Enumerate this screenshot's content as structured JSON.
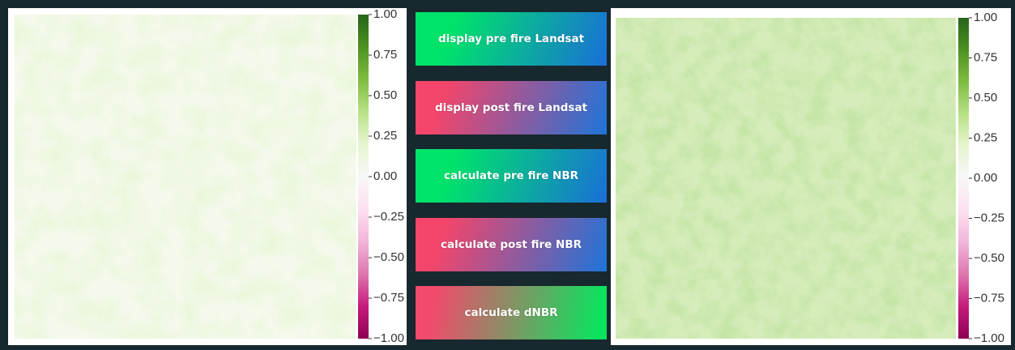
{
  "panels": [
    {
      "colorbar": {
        "lim": [
          -1,
          1
        ],
        "ticks": [
          {
            "value": 1,
            "label": "1.00"
          },
          {
            "value": 0.75,
            "label": "0.75"
          },
          {
            "value": 0.5,
            "label": "0.50"
          },
          {
            "value": 0.25,
            "label": "0.25"
          },
          {
            "value": 0,
            "label": "0.00"
          },
          {
            "value": -0.25,
            "label": "−0.25"
          },
          {
            "value": -0.5,
            "label": "−0.50"
          },
          {
            "value": -0.75,
            "label": "−0.75"
          },
          {
            "value": -1,
            "label": "−1.00"
          }
        ]
      }
    },
    {
      "colorbar": {
        "lim": [
          -1,
          1
        ],
        "ticks": [
          {
            "value": 1,
            "label": "1.00"
          },
          {
            "value": 0.75,
            "label": "0.75"
          },
          {
            "value": 0.5,
            "label": "0.50"
          },
          {
            "value": 0.25,
            "label": "0.25"
          },
          {
            "value": 0,
            "label": "0.00"
          },
          {
            "value": -0.25,
            "label": "−0.25"
          },
          {
            "value": -0.5,
            "label": "−0.50"
          },
          {
            "value": -0.75,
            "label": "−0.75"
          },
          {
            "value": -1,
            "label": "−1.00"
          }
        ]
      }
    }
  ],
  "buttons": [
    {
      "label": "display pre fire Landsat"
    },
    {
      "label": "display post fire Landsat"
    },
    {
      "label": "calculate pre fire NBR"
    },
    {
      "label": "calculate post fire NBR"
    },
    {
      "label": "calculate dNBR"
    }
  ]
}
